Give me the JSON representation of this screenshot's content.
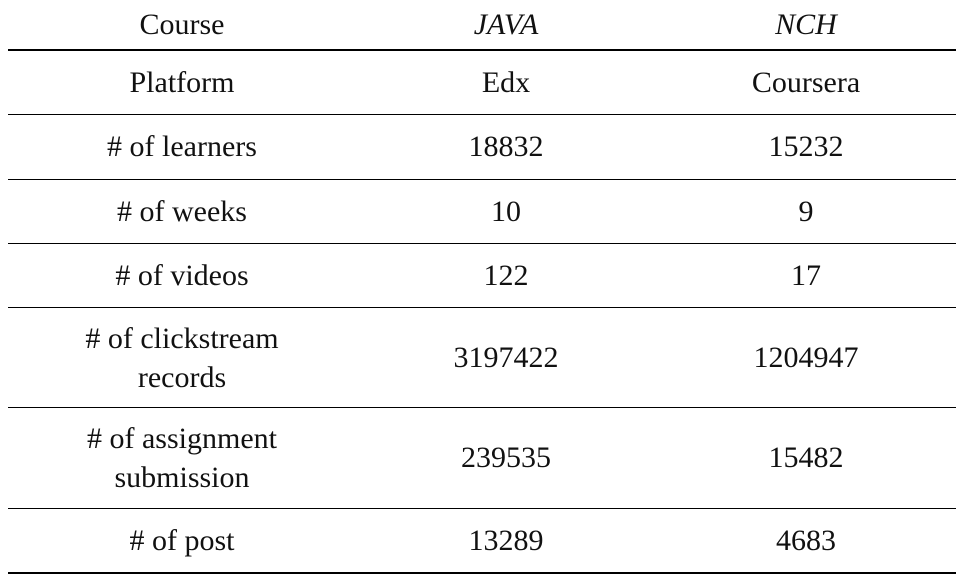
{
  "table": {
    "header": {
      "label": "Course",
      "courses": [
        "JAVA",
        "NCH"
      ]
    },
    "rows": [
      {
        "label": "Platform",
        "values": [
          "Edx",
          "Coursera"
        ]
      },
      {
        "label": "# of learners",
        "values": [
          "18832",
          "15232"
        ]
      },
      {
        "label": "# of weeks",
        "values": [
          "10",
          "9"
        ]
      },
      {
        "label": "# of videos",
        "values": [
          "122",
          "17"
        ]
      },
      {
        "label_lines": [
          "# of clickstream",
          "records"
        ],
        "values": [
          "3197422",
          "1204947"
        ]
      },
      {
        "label_lines": [
          "# of assignment",
          "submission"
        ],
        "values": [
          "239535",
          "15482"
        ]
      },
      {
        "label": "# of post",
        "values": [
          "13289",
          "4683"
        ]
      }
    ]
  }
}
